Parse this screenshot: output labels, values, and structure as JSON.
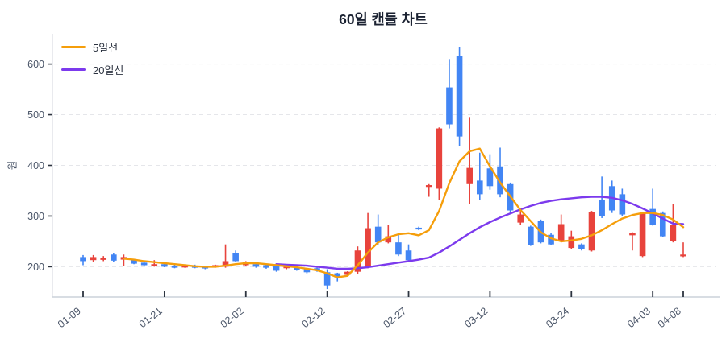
{
  "chart_data": {
    "type": "candlestick",
    "title": "60일 캔들 차트",
    "ylabel": "원",
    "legend_position": "top-left",
    "grid": "horizontal-dashed",
    "ylim": [
      145,
      655
    ],
    "y_ticks": [
      200,
      300,
      400,
      500,
      600
    ],
    "x_ticks": [
      {
        "label": "01-09",
        "index": 0
      },
      {
        "label": "01-21",
        "index": 8
      },
      {
        "label": "02-02",
        "index": 16
      },
      {
        "label": "02-12",
        "index": 24
      },
      {
        "label": "02-27",
        "index": 32
      },
      {
        "label": "03-12",
        "index": 40
      },
      {
        "label": "03-24",
        "index": 48
      },
      {
        "label": "04-03",
        "index": 56
      },
      {
        "label": "04-08",
        "index": 59
      }
    ],
    "candles_ohlc": [
      [
        219,
        223,
        203,
        211
      ],
      [
        213,
        223,
        209,
        219
      ],
      [
        214,
        221,
        211,
        217
      ],
      [
        224,
        226,
        209,
        212
      ],
      [
        214,
        224,
        202,
        219
      ],
      [
        213,
        215,
        205,
        206
      ],
      [
        208,
        210,
        202,
        203
      ],
      [
        202,
        213,
        200,
        205
      ],
      [
        205,
        207,
        199,
        200
      ],
      [
        202,
        204,
        197,
        198
      ],
      [
        200,
        204,
        198,
        202
      ],
      [
        202,
        204,
        197,
        198
      ],
      [
        200,
        202,
        195,
        197
      ],
      [
        200,
        204,
        198,
        203
      ],
      [
        200,
        244,
        198,
        211
      ],
      [
        227,
        232,
        210,
        211
      ],
      [
        203,
        211,
        201,
        210
      ],
      [
        205,
        207,
        198,
        200
      ],
      [
        203,
        205,
        196,
        198
      ],
      [
        203,
        204,
        190,
        192
      ],
      [
        197,
        204,
        195,
        203
      ],
      [
        198,
        200,
        192,
        194
      ],
      [
        195,
        197,
        187,
        189
      ],
      [
        197,
        198,
        190,
        192
      ],
      [
        189,
        195,
        156,
        163
      ],
      [
        187,
        188,
        171,
        179
      ],
      [
        184,
        191,
        181,
        190
      ],
      [
        190,
        240,
        186,
        232
      ],
      [
        200,
        306,
        197,
        276
      ],
      [
        279,
        303,
        244,
        248
      ],
      [
        248,
        282,
        246,
        260
      ],
      [
        248,
        263,
        221,
        224
      ],
      [
        232,
        244,
        210,
        213
      ],
      [
        277,
        279,
        272,
        276
      ],
      [
        359,
        363,
        338,
        361
      ],
      [
        354,
        475,
        331,
        473
      ],
      [
        554,
        610,
        473,
        481
      ],
      [
        616,
        633,
        438,
        457
      ],
      [
        363,
        494,
        324,
        395
      ],
      [
        370,
        425,
        332,
        343
      ],
      [
        394,
        422,
        352,
        359
      ],
      [
        398,
        435,
        337,
        343
      ],
      [
        363,
        366,
        306,
        311
      ],
      [
        287,
        316,
        283,
        303
      ],
      [
        279,
        281,
        241,
        243
      ],
      [
        290,
        293,
        246,
        248
      ],
      [
        263,
        266,
        242,
        244
      ],
      [
        251,
        303,
        248,
        284
      ],
      [
        237,
        271,
        234,
        260
      ],
      [
        244,
        246,
        232,
        235
      ],
      [
        232,
        310,
        230,
        308
      ],
      [
        332,
        378,
        296,
        300
      ],
      [
        359,
        370,
        306,
        311
      ],
      [
        343,
        354,
        300,
        303
      ],
      [
        262,
        268,
        232,
        266
      ],
      [
        221,
        308,
        219,
        306
      ],
      [
        314,
        354,
        281,
        283
      ],
      [
        306,
        309,
        258,
        260
      ],
      [
        251,
        324,
        248,
        283
      ],
      [
        222,
        248,
        219,
        224
      ]
    ],
    "series": [
      {
        "name": "5일선",
        "color": "#f59e0b",
        "start_index": 4,
        "values": [
          216,
          214,
          211,
          209,
          207,
          205,
          203,
          201,
          200,
          200,
          202,
          205,
          207,
          207,
          205,
          203,
          201,
          199,
          196,
          193,
          187,
          179,
          182,
          203,
          228,
          248,
          258,
          264,
          266,
          262,
          272,
          310,
          365,
          408,
          428,
          433,
          398,
          366,
          339,
          312,
          290,
          268,
          256,
          250,
          252,
          255,
          262,
          272,
          284,
          295,
          302,
          306,
          306,
          302,
          293,
          278
        ]
      },
      {
        "name": "20일선",
        "color": "#7c3aed",
        "start_index": 19,
        "values": [
          205,
          204,
          203,
          202,
          200,
          198,
          196,
          196,
          197,
          199,
          202,
          205,
          208,
          211,
          214,
          218,
          228,
          240,
          253,
          266,
          278,
          288,
          297,
          305,
          313,
          320,
          326,
          330,
          333,
          335,
          337,
          338,
          338,
          336,
          331,
          324,
          315,
          305,
          295,
          285,
          284
        ]
      }
    ],
    "colors": {
      "up_candle": "#e8433c",
      "down_candle": "#4285f4",
      "grid": "#e5e6ea",
      "axis_line": "#ccd2da",
      "tick_mark": "#2d3440",
      "tick_text": "#4a5568",
      "title_text": "#1b2232"
    }
  }
}
